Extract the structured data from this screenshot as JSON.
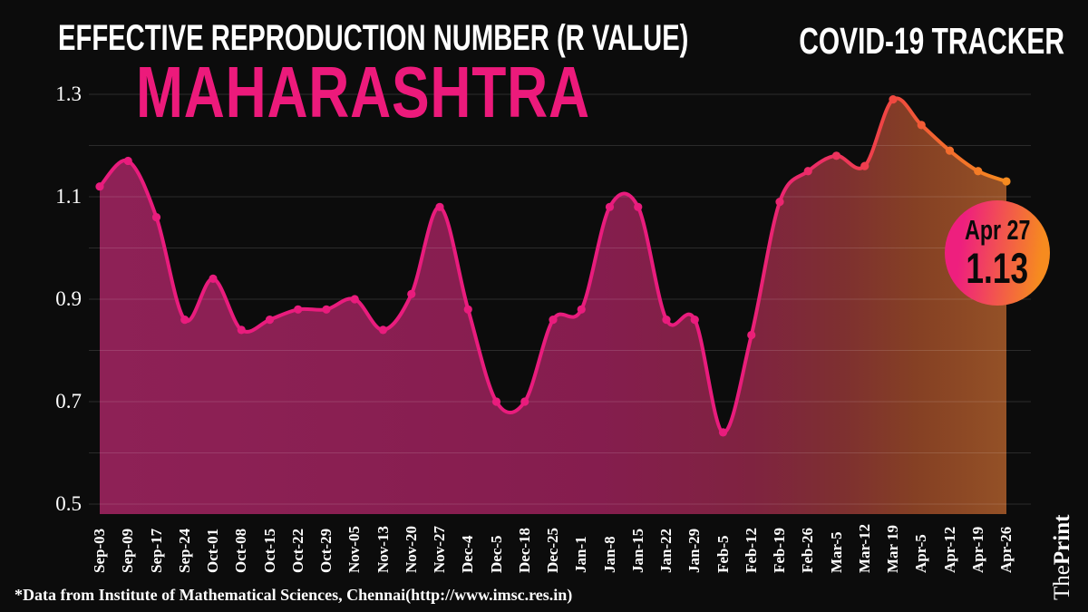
{
  "header": {
    "title": "EFFECTIVE REPRODUCTION NUMBER (R VALUE)",
    "tracker": "COVID-19 TRACKER",
    "region": "MAHARASHTRA"
  },
  "badge": {
    "date": "Apr 27",
    "value": "1.13"
  },
  "footer": {
    "source": "*Data from Institute of Mathematical Sciences, Chennai(http://www.imsc.res.in)"
  },
  "logo": {
    "part1": "The",
    "part2": "Print"
  },
  "colors": {
    "background": "#0c0c0c",
    "title_text": "#ffffff",
    "accent_pink": "#ec1a7b",
    "badge_gradient_start": "#ee1f7e",
    "badge_gradient_end": "#f68b1f",
    "grid": "rgba(255,255,255,0.13)",
    "badge_text": "#0a0a0a"
  },
  "chart_data": {
    "type": "area",
    "title": "EFFECTIVE REPRODUCTION NUMBER (R VALUE) - MAHARASHTRA",
    "xlabel": "",
    "ylabel": "",
    "ylim": [
      0.5,
      1.3
    ],
    "grid": true,
    "grid_interval": 0.1,
    "legend": false,
    "categories": [
      "Sep-03",
      "Sep-09",
      "Sep-17",
      "Sep-24",
      "Oct-01",
      "Oct-08",
      "Oct-15",
      "Oct-22",
      "Oct-29",
      "Nov-05",
      "Nov-13",
      "Nov-20",
      "Nov-27",
      "Dec-4",
      "Dec-5",
      "Dec-18",
      "Dec-25",
      "Jan-1",
      "Jan-8",
      "Jan-15",
      "Jan-22",
      "Jan-29",
      "Feb-5",
      "Feb-12",
      "Feb-19",
      "Feb-26",
      "Mar-5",
      "Mar-12",
      "Mar 19",
      "Apr-5",
      "Apr-12",
      "Apr-19",
      "Apr-26"
    ],
    "values": [
      1.12,
      1.17,
      1.06,
      0.86,
      0.94,
      0.84,
      0.86,
      0.88,
      0.88,
      0.9,
      0.84,
      0.91,
      1.08,
      0.88,
      0.7,
      0.7,
      0.86,
      0.88,
      1.08,
      1.08,
      0.86,
      0.86,
      0.64,
      0.83,
      1.09,
      1.15,
      1.18,
      1.16,
      1.29,
      1.24,
      1.19,
      1.15,
      1.13
    ],
    "y_ticks": [
      {
        "label": "1.3",
        "value": 1.3
      },
      {
        "label": "1.1",
        "value": 1.1
      },
      {
        "label": "0.9",
        "value": 0.9
      },
      {
        "label": "0.7",
        "value": 0.7
      },
      {
        "label": "0.5",
        "value": 0.5
      }
    ],
    "last_point": {
      "date": "Apr 27",
      "value": 1.13
    },
    "line_gradient": [
      {
        "offset": 0,
        "color": "#e91c7d"
      },
      {
        "offset": 0.7,
        "color": "#e91c7d"
      },
      {
        "offset": 0.8,
        "color": "#ec2f63"
      },
      {
        "offset": 0.875,
        "color": "#f04840"
      },
      {
        "offset": 0.93,
        "color": "#f3692e"
      },
      {
        "offset": 1,
        "color": "#f68b1f"
      }
    ],
    "fill_gradient": [
      {
        "offset": 0,
        "color": "#8e2156"
      },
      {
        "offset": 0.55,
        "color": "#851d4e"
      },
      {
        "offset": 0.72,
        "color": "#7f2340"
      },
      {
        "offset": 0.82,
        "color": "#7e3030"
      },
      {
        "offset": 0.9,
        "color": "#854024"
      },
      {
        "offset": 1,
        "color": "#945126"
      }
    ]
  }
}
